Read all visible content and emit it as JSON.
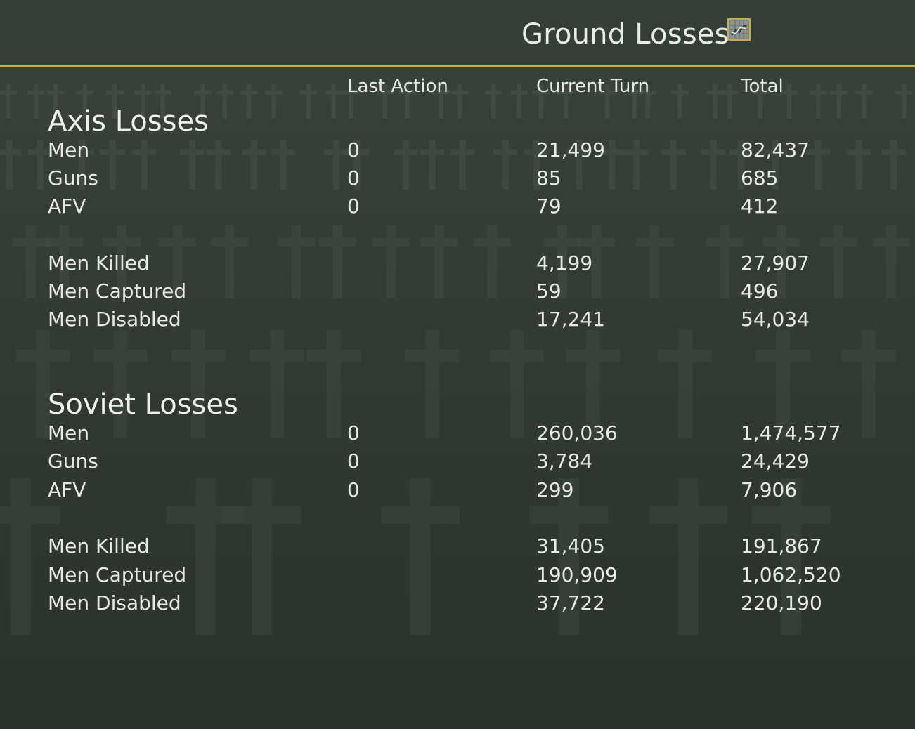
{
  "title": "Ground Losses",
  "header_icon": "graph-icon",
  "columns": [
    "Last Action",
    "Current Turn",
    "Total"
  ],
  "axis": {
    "title": "Axis Losses",
    "rows": [
      {
        "label": "Men",
        "last_action": "0",
        "current_turn": "21,499",
        "total": "82,437"
      },
      {
        "label": "Guns",
        "last_action": "0",
        "current_turn": "85",
        "total": "685"
      },
      {
        "label": "AFV",
        "last_action": "0",
        "current_turn": "79",
        "total": "412"
      },
      {
        "label": "Men Killed",
        "last_action": "",
        "current_turn": "4,199",
        "total": "27,907"
      },
      {
        "label": "Men Captured",
        "last_action": "",
        "current_turn": "59",
        "total": "496"
      },
      {
        "label": "Men Disabled",
        "last_action": "",
        "current_turn": "17,241",
        "total": "54,034"
      }
    ]
  },
  "soviet": {
    "title": "Soviet Losses",
    "rows": [
      {
        "label": "Men",
        "last_action": "0",
        "current_turn": "260,036",
        "total": "1,474,577"
      },
      {
        "label": "Guns",
        "last_action": "0",
        "current_turn": "3,784",
        "total": "24,429"
      },
      {
        "label": "AFV",
        "last_action": "0",
        "current_turn": "299",
        "total": "7,906"
      },
      {
        "label": "Men Killed",
        "last_action": "",
        "current_turn": "31,405",
        "total": "191,867"
      },
      {
        "label": "Men Captured",
        "last_action": "",
        "current_turn": "190,909",
        "total": "1,062,520"
      },
      {
        "label": "Men Disabled",
        "last_action": "",
        "current_turn": "37,722",
        "total": "220,190"
      }
    ]
  }
}
